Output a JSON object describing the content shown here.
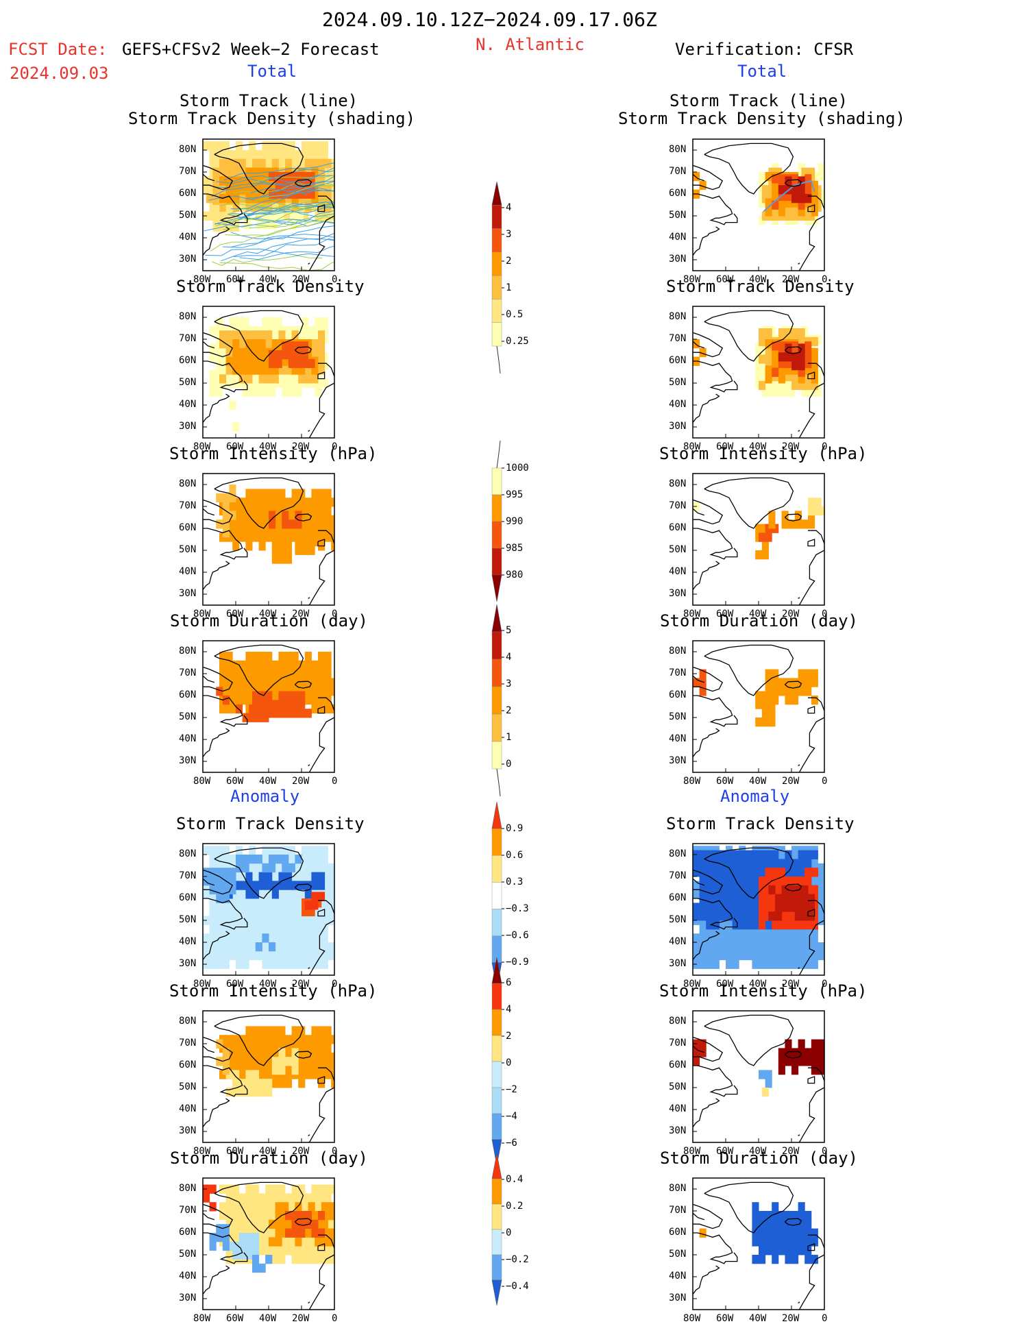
{
  "header": {
    "period": "2024.09.10.12Z−2024.09.17.06Z",
    "fcst_label": "FCST Date:",
    "model": "GEFS+CFSv2 Week−2 Forecast",
    "fcst_date": "2024.09.03",
    "region": "N. Atlantic",
    "verification": "Verification: CFSR",
    "left_section": "Total",
    "right_section": "Total",
    "anomaly_left": "Anomaly",
    "anomaly_right": "Anomaly"
  },
  "axes": {
    "lat_ticks": [
      "80N",
      "70N",
      "60N",
      "50N",
      "40N",
      "30N"
    ],
    "lon_ticks": [
      "80W",
      "60W",
      "40W",
      "20W",
      "0"
    ]
  },
  "panel_titles": {
    "track_line": "Storm Track (line)",
    "track_density_shading": "Storm Track Density (shading)",
    "track_density": "Storm Track Density",
    "intensity": "Storm Intensity (hPa)",
    "duration": "Storm Duration (day)"
  },
  "chart_data": [
    {
      "type": "heatmap",
      "name": "Total Storm Track Density",
      "colorbar": [
        "0.25",
        "0.5",
        "1",
        "2",
        "3",
        "4"
      ],
      "colors": [
        "#ffffb3",
        "#ffe680",
        "#fdbf40",
        "#fd9a00",
        "#f5560e",
        "#c21a0a",
        "#8a0000"
      ]
    },
    {
      "type": "heatmap",
      "name": "Total Storm Intensity (hPa)",
      "colorbar": [
        "1000",
        "995",
        "990",
        "985",
        "980"
      ],
      "colors": [
        "#ffffb3",
        "#fd9a00",
        "#f5560e",
        "#c21a0a",
        "#8a0000"
      ]
    },
    {
      "type": "heatmap",
      "name": "Total Storm Duration (day)",
      "colorbar": [
        "0",
        "1",
        "2",
        "3",
        "4",
        "5"
      ],
      "colors": [
        "#ffffb3",
        "#fdbf40",
        "#fd9a00",
        "#f5560e",
        "#c21a0a",
        "#8a0000"
      ]
    },
    {
      "type": "heatmap",
      "name": "Anomaly Storm Track Density",
      "colorbar": [
        "0.9",
        "0.6",
        "0.3",
        "−0.3",
        "−0.6",
        "−0.9"
      ],
      "colors": [
        "#f5360e",
        "#fd9a00",
        "#ffe680",
        "#ffffff",
        "#aadcf7",
        "#62a8f0",
        "#1f5fd6"
      ]
    },
    {
      "type": "heatmap",
      "name": "Anomaly Storm Intensity (hPa)",
      "colorbar": [
        "6",
        "4",
        "2",
        "0",
        "−2",
        "−4",
        "−6"
      ],
      "colors": [
        "#8a0000",
        "#f5360e",
        "#fd9a00",
        "#ffe680",
        "#c8ecfb",
        "#aadcf7",
        "#62a8f0",
        "#1f5fd6"
      ]
    },
    {
      "type": "heatmap",
      "name": "Anomaly Storm Duration (day)",
      "colorbar": [
        "0.4",
        "0.2",
        "0",
        "−0.2",
        "−0.4"
      ],
      "colors": [
        "#f5360e",
        "#fd9a00",
        "#ffe680",
        "#c8ecfb",
        "#62a8f0",
        "#1f5fd6"
      ]
    }
  ]
}
